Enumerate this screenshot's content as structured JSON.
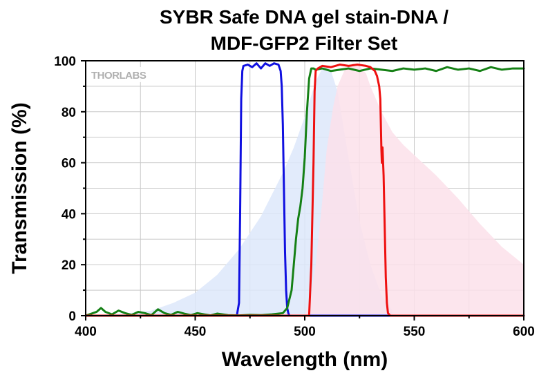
{
  "chart_data": {
    "type": "line",
    "title_lines": [
      "SYBR Safe DNA gel stain-DNA /",
      "MDF-GFP2 Filter Set"
    ],
    "xlabel": "Wavelength (nm)",
    "ylabel": "Transmission (%)",
    "xlim": [
      400,
      600
    ],
    "ylim": [
      0,
      100
    ],
    "xticks": [
      "400",
      "450",
      "500",
      "550",
      "600"
    ],
    "yticks": [
      "0",
      "20",
      "40",
      "60",
      "80",
      "100"
    ],
    "grid": true,
    "legend": "none",
    "logo_text": "THORLABS",
    "colors": {
      "excitation_filter": "#1010e0",
      "dichroic": "#158015",
      "emission_filter": "#ee1010",
      "absorption_fill": "#dde8fa",
      "emission_fill": "#fbe0ea",
      "grid": "#c8c8c8"
    },
    "areas": [
      {
        "name": "",
        "color": "#dde8fa",
        "x": [
          400,
          410,
          420,
          430,
          440,
          450,
          460,
          470,
          480,
          490,
          495,
          500,
          505,
          508,
          510,
          512,
          515,
          520,
          525,
          530,
          535,
          540
        ],
        "y": [
          0,
          0.5,
          1,
          2,
          5,
          9,
          16,
          26,
          39,
          56,
          66,
          78,
          92,
          97,
          98,
          96,
          88,
          62,
          37,
          20,
          8,
          2
        ]
      },
      {
        "name": "",
        "color": "#fbe0ea",
        "x": [
          500,
          503,
          505,
          508,
          510,
          513,
          515,
          518,
          520,
          522,
          525,
          528,
          530,
          535,
          540,
          545,
          550,
          560,
          570,
          580,
          590,
          600
        ],
        "y": [
          0,
          8,
          20,
          45,
          65,
          82,
          90,
          96,
          98,
          99,
          98,
          95,
          90,
          80,
          72,
          67,
          63,
          55,
          46,
          36,
          27,
          20
        ]
      }
    ],
    "series": [
      {
        "name": "",
        "color": "#1010e0",
        "x": [
          400,
          469,
          470,
          470.5,
          471,
          471.5,
          472,
          474,
          476,
          478,
          480,
          482,
          484,
          486,
          488,
          489,
          489.5,
          490,
          490.5,
          491,
          491.5,
          492,
          492.5,
          493,
          600
        ],
        "y": [
          0,
          0,
          5,
          40,
          85,
          96,
          98,
          98.5,
          97.5,
          99,
          97,
          99,
          98,
          99,
          98.5,
          96,
          90,
          75,
          50,
          25,
          10,
          3,
          1,
          0,
          0
        ]
      },
      {
        "name": "",
        "color": "#158015",
        "x": [
          400,
          405,
          407,
          409,
          412,
          415,
          418,
          421,
          424,
          427,
          430,
          433,
          436,
          439,
          442,
          445,
          448,
          451,
          454,
          457,
          460,
          465,
          470,
          475,
          480,
          485,
          490,
          492,
          494,
          495,
          496,
          497,
          498,
          499,
          500,
          501,
          502,
          503,
          504,
          505,
          508,
          512,
          516,
          520,
          525,
          530,
          535,
          540,
          545,
          550,
          555,
          560,
          565,
          570,
          575,
          580,
          585,
          590,
          595,
          600
        ],
        "y": [
          0,
          1.5,
          3,
          1.5,
          0.5,
          2,
          1,
          0.3,
          1.5,
          1,
          0.2,
          2.5,
          1,
          0.3,
          1.5,
          0.8,
          0.2,
          1,
          0.5,
          0.1,
          0.8,
          0.2,
          0.1,
          0.3,
          0.2,
          0.5,
          1,
          3,
          10,
          20,
          30,
          38,
          43,
          50,
          62,
          80,
          93,
          97,
          97,
          96.5,
          97,
          96,
          96.5,
          97,
          96,
          97,
          96.5,
          96,
          97,
          96.5,
          97,
          96,
          97.5,
          96.5,
          97,
          96,
          97.5,
          96.5,
          97,
          97
        ]
      },
      {
        "name": "",
        "color": "#ee1010",
        "x": [
          400,
          502,
          503,
          504,
          504.5,
          505,
          506,
          508,
          512,
          516,
          520,
          524,
          528,
          530,
          532,
          533,
          534,
          534.5,
          535,
          535.2,
          535.5,
          536,
          536.5,
          537,
          537.5,
          538,
          539,
          600
        ],
        "y": [
          0,
          0,
          20,
          60,
          88,
          96,
          97,
          98,
          97.5,
          98.5,
          98,
          98.5,
          98,
          97.5,
          96,
          94,
          90,
          85,
          65,
          60,
          66,
          55,
          35,
          15,
          5,
          1,
          0,
          0
        ]
      }
    ]
  }
}
